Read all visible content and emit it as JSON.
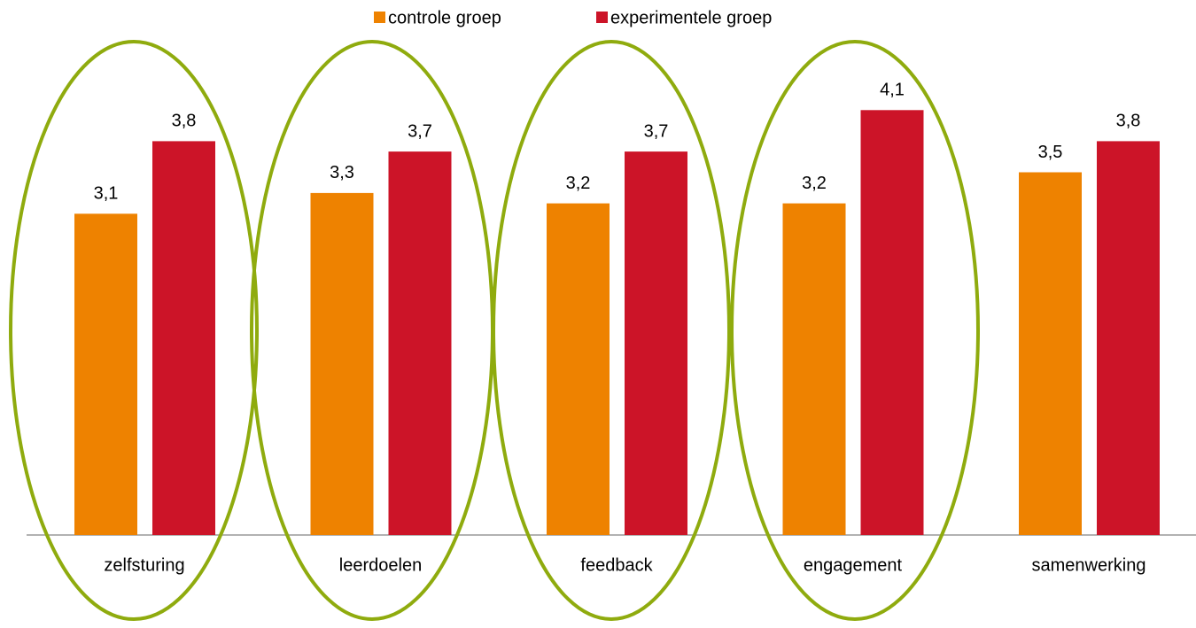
{
  "chart_data": {
    "type": "bar",
    "categories": [
      "zelfsturing",
      "leerdoelen",
      "feedback",
      "engagement",
      "samenwerking"
    ],
    "series": [
      {
        "name": "controle groep",
        "color": "#ee8200",
        "values": [
          3.1,
          3.3,
          3.2,
          3.2,
          3.5
        ],
        "value_labels": [
          "3,1",
          "3,3",
          "3,2",
          "3,2",
          "3,5"
        ]
      },
      {
        "name": "experimentele groep",
        "color": "#cc1428",
        "values": [
          3.8,
          3.7,
          3.7,
          4.1,
          3.8
        ],
        "value_labels": [
          "3,8",
          "3,7",
          "3,7",
          "4,1",
          "3,8"
        ]
      }
    ],
    "legend": "top"
  }
}
